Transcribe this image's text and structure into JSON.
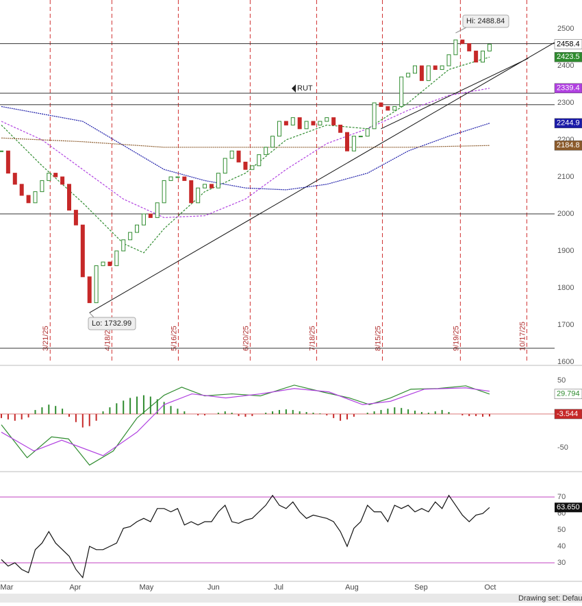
{
  "chart_data": [
    {
      "type": "candlestick",
      "close": [
        2170,
        2110,
        2080,
        2050,
        2030,
        2060,
        2090,
        2110,
        2100,
        2080,
        2010,
        1970,
        1830,
        1760,
        1860,
        1870,
        1860,
        1900,
        1930,
        1950,
        1970,
        2000,
        1990,
        2030,
        2090,
        2100,
        2100,
        2090,
        2030,
        2070,
        2080,
        2070,
        2110,
        2150,
        2170,
        2140,
        2120,
        2130,
        2160,
        2180,
        2210,
        2250,
        2240,
        2260,
        2230,
        2250,
        2240,
        2250,
        2260,
        2240,
        2220,
        2170,
        2210,
        2210,
        2230,
        2300,
        2290,
        2280,
        2290,
        2370,
        2380,
        2400,
        2360,
        2400,
        2390,
        2400,
        2430,
        2470,
        2460,
        2440,
        2410,
        2440,
        2458.4
      ],
      "up_color": "#2e8b2e",
      "down_color": "#c62828",
      "series": [
        {
          "color": "#2e8b2e",
          "x": [
            0,
            6,
            12,
            18,
            21,
            24,
            30,
            36,
            42,
            48,
            54,
            60,
            66,
            72
          ],
          "values": [
            2240,
            2130,
            2030,
            1920,
            1895,
            1960,
            2060,
            2110,
            2200,
            2240,
            2230,
            2300,
            2390,
            2423.5
          ]
        },
        {
          "color": "#b040e0",
          "x": [
            0,
            6,
            12,
            18,
            24,
            30,
            36,
            42,
            48,
            54,
            60,
            66,
            72
          ],
          "values": [
            2250,
            2200,
            2120,
            2040,
            1990,
            1995,
            2040,
            2120,
            2190,
            2230,
            2280,
            2320,
            2339.4
          ]
        },
        {
          "color": "#1a1aa8",
          "x": [
            0,
            12,
            24,
            30,
            36,
            42,
            48,
            54,
            60,
            66,
            72
          ],
          "values": [
            2290,
            2250,
            2120,
            2090,
            2070,
            2065,
            2080,
            2110,
            2170,
            2210,
            2244.9
          ]
        },
        {
          "color": "#8b5a2b",
          "x": [
            0,
            12,
            24,
            36,
            48,
            60,
            72
          ],
          "values": [
            2205,
            2195,
            2180,
            2180,
            2180,
            2180,
            2184.8
          ]
        }
      ],
      "hlines": [
        2460,
        2326,
        2295,
        2000,
        1637
      ],
      "trendlines": [
        {
          "x": [
            13,
            81.6
          ],
          "y": [
            1732.99,
            2463
          ]
        },
        {
          "x": [
            56,
            77.7
          ],
          "y": [
            2230,
            2420
          ]
        }
      ],
      "high": {
        "value": 2488.84,
        "label": "Hi: 2488.84"
      },
      "low": {
        "value": 1732.99,
        "label": "Lo: 1732.99"
      },
      "annotation": "RUT",
      "xlim": [
        -0.2,
        81.6
      ],
      "ylim": [
        1596.3,
        2577.8
      ],
      "yticks": [
        2500,
        2400,
        2300,
        2200,
        2100,
        2000,
        1900,
        1800,
        1700,
        1600
      ],
      "xticks": [
        {
          "value": 7.2,
          "label": "3/21/25"
        },
        {
          "value": 16.3,
          "label": "4/18/25"
        },
        {
          "value": 26.1,
          "label": "5/16/25"
        },
        {
          "value": 36.7,
          "label": "6/20/25"
        },
        {
          "value": 46.5,
          "label": "7/18/25"
        },
        {
          "value": 56.2,
          "label": "8/15/25"
        },
        {
          "value": 67.7,
          "label": "9/19/25"
        },
        {
          "value": 77.5,
          "label": "10/17/25"
        }
      ]
    },
    {
      "type": "macd",
      "series": [
        {
          "color": "#2e8b2e",
          "x": [
            0,
            3.8,
            7.4,
            9.9,
            13,
            16.5,
            20,
            24,
            26.6,
            30,
            34,
            38.2,
            43.2,
            47.3,
            51.3,
            54.3,
            57.4,
            60.4,
            64.4,
            68.5,
            72
          ],
          "values": [
            -16,
            -65,
            -34,
            -37,
            -76,
            -55,
            -6,
            28,
            40,
            27,
            30,
            27,
            43,
            33,
            24,
            14,
            24,
            37,
            38,
            42,
            29.794
          ]
        },
        {
          "color": "#b040e0",
          "x": [
            0,
            4.8,
            8.9,
            15,
            20,
            24,
            28.1,
            33.1,
            38.2,
            43.2,
            48.3,
            53.3,
            57.4,
            62.4,
            68.5,
            72
          ],
          "values": [
            -27,
            -55,
            -39,
            -62,
            -27,
            14,
            30,
            24,
            30,
            38,
            33,
            14,
            19,
            37,
            39,
            34
          ]
        }
      ],
      "histogram": [
        -6,
        -8,
        -10,
        -8,
        -5,
        6,
        10,
        14,
        12,
        8,
        -4,
        -12,
        -20,
        -18,
        -10,
        4,
        10,
        16,
        20,
        24,
        26,
        28,
        26,
        22,
        18,
        12,
        8,
        4,
        0,
        -2,
        -2,
        0,
        2,
        4,
        2,
        -3,
        -4,
        -3,
        0,
        2,
        4,
        6,
        7,
        6,
        4,
        3,
        2,
        1,
        -2,
        -6,
        -10,
        -8,
        -4,
        0,
        2,
        4,
        6,
        8,
        10,
        9,
        7,
        5,
        3,
        2,
        4,
        6,
        3,
        0,
        -2,
        -3,
        -3,
        -4,
        -3.544
      ],
      "xlim": [
        -0.2,
        81.6
      ],
      "ylim": [
        -82.7,
        70.4
      ],
      "yticks": [
        50,
        -50
      ]
    },
    {
      "type": "rsi",
      "values": [
        32,
        28,
        30,
        26,
        24,
        38,
        42,
        49,
        42,
        38,
        34,
        26,
        21,
        40,
        38,
        38,
        40,
        42,
        51,
        52,
        55,
        57,
        55,
        63,
        63,
        61,
        63,
        53,
        55,
        53,
        55,
        55,
        61,
        65,
        55,
        54,
        56,
        57,
        61,
        65,
        71,
        65,
        63,
        67,
        61,
        57,
        59,
        58,
        57,
        55,
        49,
        40,
        51,
        55,
        65,
        61,
        61,
        55,
        65,
        63,
        65,
        61,
        63,
        61,
        67,
        63,
        71,
        65,
        59,
        55,
        59,
        60,
        63.65
      ],
      "value_labels": {
        "72": "63.650"
      },
      "levels": [
        70,
        30
      ],
      "xlim": [
        -0.2,
        81.6
      ],
      "ylim": [
        20,
        84.6
      ],
      "yticks": [
        70,
        60,
        50,
        40,
        30
      ],
      "xticks": [
        {
          "value": 0.8,
          "label": "Mar"
        },
        {
          "value": 10.9,
          "label": "Apr"
        },
        {
          "value": 21.4,
          "label": "May"
        },
        {
          "value": 31.3,
          "label": "Jun"
        },
        {
          "value": 40.9,
          "label": "Jul"
        },
        {
          "value": 51.7,
          "label": "Aug"
        },
        {
          "value": 61.9,
          "label": "Sep"
        },
        {
          "value": 72.1,
          "label": "Oct"
        }
      ]
    }
  ],
  "toolbar": {
    "drawing_set": "Drawing set: Defau"
  }
}
